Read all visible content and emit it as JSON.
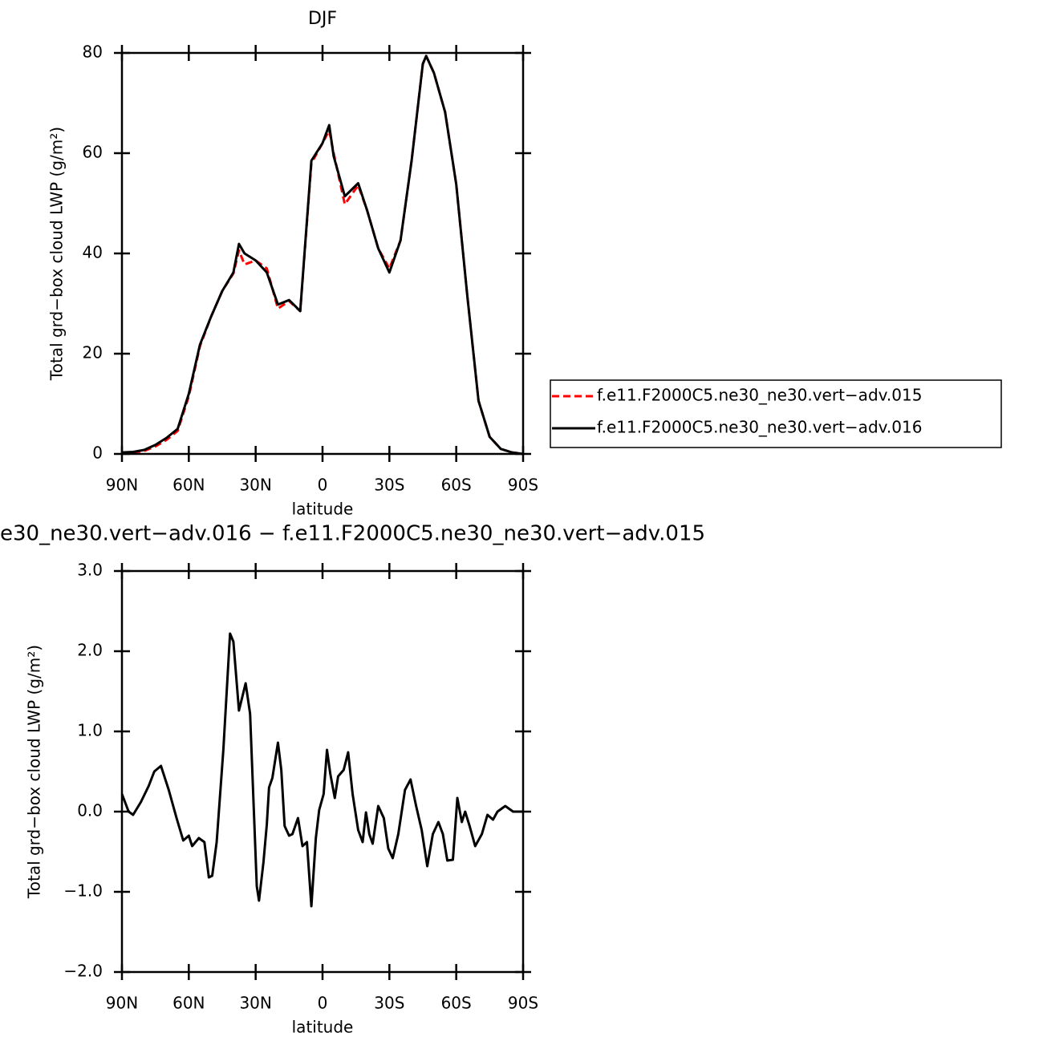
{
  "chart_data": [
    {
      "type": "line",
      "title": "DJF",
      "xlabel": "latitude",
      "ylabel": "Total grd−box cloud LWP (g/m²)",
      "x": [
        90,
        85,
        80,
        75,
        70,
        65,
        60,
        55,
        50,
        45,
        40,
        37.5,
        35,
        30,
        25,
        20,
        15,
        10,
        5,
        0,
        -3,
        -5,
        -10,
        -16,
        -20,
        -25,
        -30,
        -35,
        -40,
        -45,
        -46.5,
        -50,
        -55,
        -60,
        -65,
        -70,
        -75,
        -80,
        -85,
        -90
      ],
      "series": [
        {
          "name": "f.e11.F2000C5.ne30_ne30.vert−adv.015",
          "color": "#ff0000",
          "line_style": "dashed",
          "values": [
            0.2,
            0.3,
            0.6,
            1.5,
            2.8,
            4.6,
            11.5,
            21.5,
            27.4,
            32.5,
            36,
            40.6,
            37.8,
            38.6,
            37,
            29,
            30.5,
            28.5,
            58,
            62,
            64.6,
            60,
            49.8,
            53.6,
            48.6,
            41,
            37,
            42.6,
            58.6,
            77.8,
            79.4,
            76,
            68.2,
            53.8,
            31.4,
            10.6,
            3.4,
            1,
            0.3,
            0
          ]
        },
        {
          "name": "f.e11.F2000C5.ne30_ne30.vert−adv.016",
          "color": "#000000",
          "line_style": "solid",
          "values": [
            0.3,
            0.4,
            0.8,
            1.8,
            3.2,
            5,
            12,
            21.8,
            27.4,
            32.5,
            36.2,
            41.9,
            40,
            38.6,
            36.2,
            29.8,
            30.7,
            28.5,
            58.5,
            62,
            65.6,
            59.4,
            51.4,
            54,
            48.6,
            41,
            36.2,
            42.6,
            58.6,
            77.8,
            79.4,
            76,
            68.2,
            53.8,
            31.4,
            10.6,
            3.4,
            1,
            0.3,
            0
          ]
        }
      ],
      "xlim": [
        90,
        -90
      ],
      "xticks": [
        {
          "value": 90,
          "label": "90N"
        },
        {
          "value": 60,
          "label": "60N"
        },
        {
          "value": 30,
          "label": "30N"
        },
        0,
        {
          "value": -30,
          "label": "30S"
        },
        {
          "value": -60,
          "label": "60S"
        },
        {
          "value": -90,
          "label": "90S"
        }
      ],
      "ylim": [
        0,
        80
      ],
      "yticks": [
        0,
        20,
        40,
        60,
        80
      ],
      "legend": "right"
    },
    {
      "type": "line",
      "title": "e30_ne30.vert−adv.016 − f.e11.F2000C5.ne30_ne30.vert−adv.015",
      "xlabel": "latitude",
      "ylabel": "Total grd−box cloud LWP (g/m²)",
      "x": [
        90,
        87,
        85,
        81.5,
        78,
        75.5,
        72.5,
        69,
        67.5,
        65.5,
        62.5,
        60,
        58.5,
        55.5,
        53,
        51,
        49.5,
        47.5,
        44.5,
        41.5,
        40,
        37.5,
        34.5,
        32.5,
        29.5,
        28.5,
        26.5,
        25,
        24,
        22.5,
        20,
        18.5,
        17,
        15,
        13.5,
        11,
        9,
        7,
        5,
        3,
        1.5,
        -0.5,
        -2,
        -3.5,
        -5.5,
        -7,
        -9.5,
        -11.5,
        -13.5,
        -16,
        -18,
        -19.5,
        -21,
        -22.5,
        -25,
        -27.5,
        -29.5,
        -31.5,
        -34,
        -37,
        -39.5,
        -42,
        -44.5,
        -47,
        -49.5,
        -52,
        -54,
        -56,
        -58.5,
        -60.5,
        -62.5,
        -64,
        -66,
        -68.5,
        -71.5,
        -74,
        -76.5,
        -78.5,
        -82,
        -85.5,
        -90
      ],
      "series": [
        {
          "color": "#000000",
          "line_style": "solid",
          "values": [
            0.22,
            0,
            -0.04,
            0.12,
            0.32,
            0.5,
            0.57,
            0.27,
            0.12,
            -0.08,
            -0.36,
            -0.3,
            -0.43,
            -0.33,
            -0.38,
            -0.82,
            -0.8,
            -0.38,
            0.77,
            2.22,
            2.12,
            1.26,
            1.6,
            1.22,
            -0.93,
            -1.11,
            -0.63,
            -0.16,
            0.3,
            0.42,
            0.86,
            0.52,
            -0.18,
            -0.3,
            -0.28,
            -0.08,
            -0.43,
            -0.38,
            -1.18,
            -0.33,
            0.02,
            0.22,
            0.77,
            0.47,
            0.17,
            0.44,
            0.52,
            0.74,
            0.22,
            -0.23,
            -0.38,
            -0.01,
            -0.28,
            -0.4,
            0.07,
            -0.08,
            -0.46,
            -0.58,
            -0.28,
            0.27,
            0.4,
            0.07,
            -0.23,
            -0.68,
            -0.28,
            -0.13,
            -0.28,
            -0.61,
            -0.6,
            0.17,
            -0.13,
            0,
            -0.18,
            -0.43,
            -0.28,
            -0.04,
            -0.1,
            0,
            0.07,
            0,
            0
          ]
        }
      ],
      "xlim": [
        90,
        -90
      ],
      "xticks": [
        {
          "value": 90,
          "label": "90N"
        },
        {
          "value": 60,
          "label": "60N"
        },
        {
          "value": 30,
          "label": "30N"
        },
        0,
        {
          "value": -30,
          "label": "30S"
        },
        {
          "value": -60,
          "label": "60S"
        },
        {
          "value": -90,
          "label": "90S"
        }
      ],
      "ylim": [
        -2,
        3
      ],
      "yticks": [
        {
          "value": -2,
          "label": "−2.0"
        },
        {
          "value": -1,
          "label": "−1.0"
        },
        {
          "value": 0,
          "label": "0.0"
        },
        {
          "value": 1,
          "label": "1.0"
        },
        {
          "value": 2,
          "label": "2.0"
        },
        {
          "value": 3,
          "label": "3.0"
        }
      ]
    }
  ]
}
